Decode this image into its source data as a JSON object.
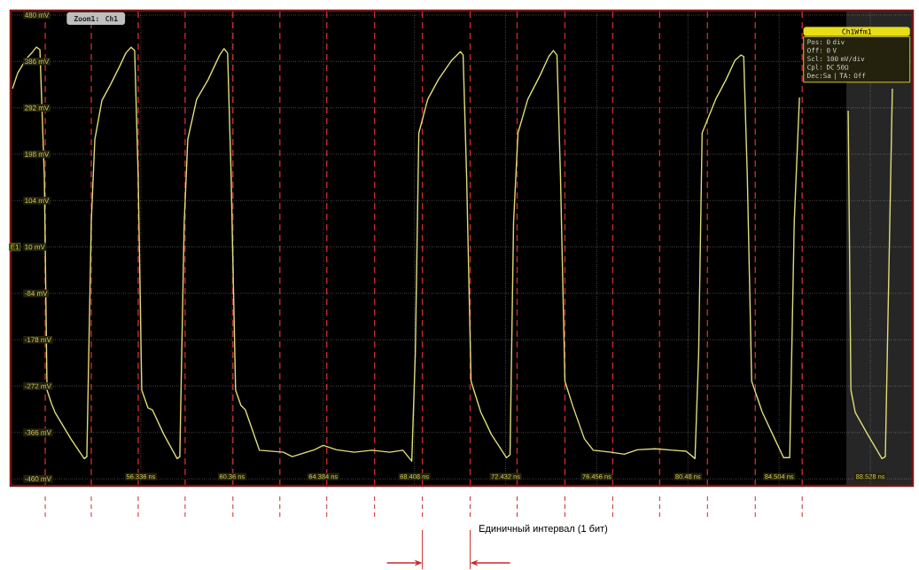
{
  "chart_data": {
    "type": "line",
    "xlim": [
      50.59,
      90.4
    ],
    "ylim": [
      -474,
      489
    ],
    "xticks": [
      {
        "value": 56.336,
        "label": "56.336 ns"
      },
      {
        "value": 60.36,
        "label": "60.36 ns"
      },
      {
        "value": 64.384,
        "label": "64.384 ns"
      },
      {
        "value": 68.408,
        "label": "68.408 ns"
      },
      {
        "value": 72.432,
        "label": "72.432 ns"
      },
      {
        "value": 76.456,
        "label": "76.456 ns"
      },
      {
        "value": 80.48,
        "label": "80.48 ns"
      },
      {
        "value": 84.504,
        "label": "84.504 ns"
      },
      {
        "value": 88.528,
        "label": "88.528 ns"
      }
    ],
    "yticks": [
      {
        "value": 480,
        "label": "480 mV"
      },
      {
        "value": 386,
        "label": "386 mV"
      },
      {
        "value": 292,
        "label": "292 mV"
      },
      {
        "value": 198,
        "label": "198 mV"
      },
      {
        "value": 104,
        "label": "104 mV"
      },
      {
        "value": 10,
        "label": "10 mV"
      },
      {
        "value": -84,
        "label": "-84 mV"
      },
      {
        "value": -178,
        "label": "-178 mV"
      },
      {
        "value": -272,
        "label": "-272 mV"
      },
      {
        "value": -366,
        "label": "-366 mV"
      },
      {
        "value": -460,
        "label": "-460 mV"
      }
    ],
    "grid": true,
    "series": [
      {
        "color": "#e0dc78",
        "x": [
          50.671,
          50.905,
          51.296,
          51.57,
          51.726,
          51.882,
          52.078,
          52.195,
          52.39,
          52.546,
          53.25,
          53.836,
          53.953,
          54.148,
          54.305,
          54.617,
          55.008,
          55.398,
          55.672,
          55.906,
          56.063,
          56.219,
          56.375,
          56.649,
          56.844,
          57.352,
          57.938,
          58.055,
          58.25,
          58.407,
          58.797,
          59.305,
          59.813,
          60.008,
          60.165,
          60.321,
          60.516,
          60.751,
          60.946,
          61.571,
          62.626,
          63.017,
          63.994,
          64.384,
          64.97,
          65.751,
          66.533,
          67.314,
          67.9,
          68.291,
          68.447,
          68.603,
          68.994,
          69.463,
          70.049,
          70.439,
          70.557,
          70.713,
          70.908,
          71.338,
          71.807,
          72.471,
          72.628,
          72.784,
          72.979,
          73.409,
          73.956,
          74.347,
          74.542,
          74.699,
          74.855,
          75.05,
          75.402,
          75.91,
          76.3,
          77.08,
          77.67,
          78.25,
          79.03,
          79.82,
          80.4,
          80.79,
          80.95,
          81.105,
          81.7,
          82.16,
          82.55,
          82.82,
          82.94,
          83.1,
          83.29,
          83.76,
          84.31,
          84.7,
          84.97,
          85.17,
          85.4,
          86.5,
          87.55,
          87.67,
          87.86,
          88.41,
          89.04,
          89.19,
          89.35,
          89.5
        ],
        "values": [
          331,
          363,
          392,
          406,
          415,
          410,
          151,
          -280,
          -307,
          -325,
          -379,
          -419,
          -415,
          61,
          228,
          307,
          340,
          376,
          403,
          415,
          408,
          151,
          -280,
          -316,
          -320,
          -370,
          -419,
          -415,
          61,
          228,
          309,
          349,
          399,
          412,
          403,
          151,
          -280,
          -311,
          -320,
          -402,
          -406,
          -415,
          -401,
          -392,
          -401,
          -406,
          -402,
          -406,
          -402,
          -424,
          -208,
          241,
          309,
          349,
          388,
          406,
          399,
          151,
          -262,
          -325,
          -370,
          -417,
          -411,
          61,
          241,
          309,
          358,
          397,
          408,
          399,
          151,
          -262,
          -313,
          -379,
          -402,
          -406,
          -410,
          -401,
          -399,
          -402,
          -404,
          -419,
          -208,
          241,
          309,
          349,
          388,
          399,
          396,
          151,
          -262,
          -325,
          -379,
          -417,
          -417,
          61,
          313,
          null,
          286,
          -280,
          -325,
          -370,
          -419,
          -415,
          -29,
          331
        ]
      }
    ],
    "ref_lines": [
      {
        "axis": "x",
        "value": 52.117,
        "color": "#c8282a",
        "line_style": "dashed"
      },
      {
        "axis": "x",
        "value": 54.148,
        "color": "#c8282a",
        "line_style": "dashed"
      },
      {
        "axis": "x",
        "value": 56.219,
        "color": "#c8282a",
        "line_style": "dashed"
      },
      {
        "axis": "x",
        "value": 58.289,
        "color": "#c8282a",
        "line_style": "dashed"
      },
      {
        "axis": "x",
        "value": 60.399,
        "color": "#c8282a",
        "line_style": "dashed"
      },
      {
        "axis": "x",
        "value": 62.47,
        "color": "#c8282a",
        "line_style": "dashed"
      },
      {
        "axis": "x",
        "value": 64.54,
        "color": "#c8282a",
        "line_style": "dashed"
      },
      {
        "axis": "x",
        "value": 66.65,
        "color": "#c8282a",
        "line_style": "dashed"
      },
      {
        "axis": "x",
        "value": 68.76,
        "color": "#c8282a",
        "line_style": "dashed"
      },
      {
        "axis": "x",
        "value": 70.87,
        "color": "#c8282a",
        "line_style": "dashed"
      },
      {
        "axis": "x",
        "value": 72.94,
        "color": "#c8282a",
        "line_style": "dashed"
      },
      {
        "axis": "x",
        "value": 75.05,
        "color": "#c8282a",
        "line_style": "dashed"
      },
      {
        "axis": "x",
        "value": 77.16,
        "color": "#c8282a",
        "line_style": "dashed"
      },
      {
        "axis": "x",
        "value": 79.23,
        "color": "#c8282a",
        "line_style": "dashed"
      },
      {
        "axis": "x",
        "value": 81.34,
        "color": "#c8282a",
        "line_style": "dashed"
      },
      {
        "axis": "x",
        "value": 83.45,
        "color": "#c8282a",
        "line_style": "dashed"
      },
      {
        "axis": "x",
        "value": 85.52,
        "color": "#c8282a",
        "line_style": "dashed"
      }
    ],
    "bands": [
      {
        "axis": "x",
        "from": 87.47,
        "to": 90.4,
        "color": "#262626"
      }
    ],
    "annotations": [
      "Zoom1: Ch1",
      "Ch1Wfm1",
      "Pos: 0 div",
      "Off: 0 V",
      "Scl: 100 mV/div",
      "Cpl: DC 50Ω",
      "Dec:Sa | TA: Off",
      "E1",
      "Единичный интервал (1 бит)"
    ]
  }
}
